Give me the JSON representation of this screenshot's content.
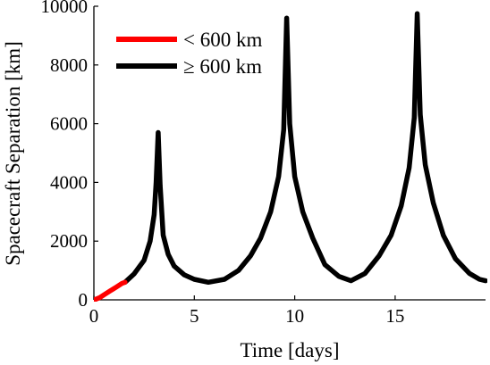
{
  "chart_data": {
    "type": "line",
    "xlabel": "Time [days]",
    "ylabel": "Spacecraft Separation [km]",
    "xlim": [
      0,
      19.5
    ],
    "ylim": [
      0,
      10000
    ],
    "xticks": [
      0,
      5,
      10,
      15
    ],
    "yticks": [
      0,
      2000,
      4000,
      6000,
      8000,
      10000
    ],
    "grid": false,
    "legend_position": "top-left",
    "series": [
      {
        "name": "< 600 km",
        "color": "#ff0000",
        "x": [
          0,
          0.1,
          0.3,
          0.5,
          0.8,
          1.1,
          1.4,
          1.55
        ],
        "y": [
          0,
          20,
          80,
          170,
          300,
          430,
          560,
          600
        ]
      },
      {
        "name": "≥ 600 km",
        "color": "#000000",
        "x": [
          1.55,
          2.0,
          2.5,
          2.8,
          3.0,
          3.1,
          3.2,
          3.3,
          3.45,
          3.7,
          4.0,
          4.5,
          5.0,
          5.7,
          6.5,
          7.2,
          7.8,
          8.3,
          8.8,
          9.2,
          9.45,
          9.6,
          9.75,
          10.0,
          10.4,
          10.9,
          11.5,
          12.2,
          12.8,
          13.5,
          14.2,
          14.8,
          15.3,
          15.7,
          15.95,
          16.1,
          16.25,
          16.5,
          16.9,
          17.4,
          18.0,
          18.7,
          19.2,
          19.5
        ],
        "y": [
          600,
          880,
          1350,
          2000,
          2900,
          4000,
          5700,
          3900,
          2200,
          1550,
          1150,
          850,
          700,
          600,
          700,
          1000,
          1500,
          2100,
          3000,
          4200,
          5800,
          9600,
          6000,
          4200,
          3000,
          2100,
          1200,
          800,
          650,
          900,
          1500,
          2200,
          3200,
          4500,
          6200,
          9750,
          6300,
          4600,
          3300,
          2200,
          1400,
          900,
          700,
          650
        ]
      }
    ]
  }
}
